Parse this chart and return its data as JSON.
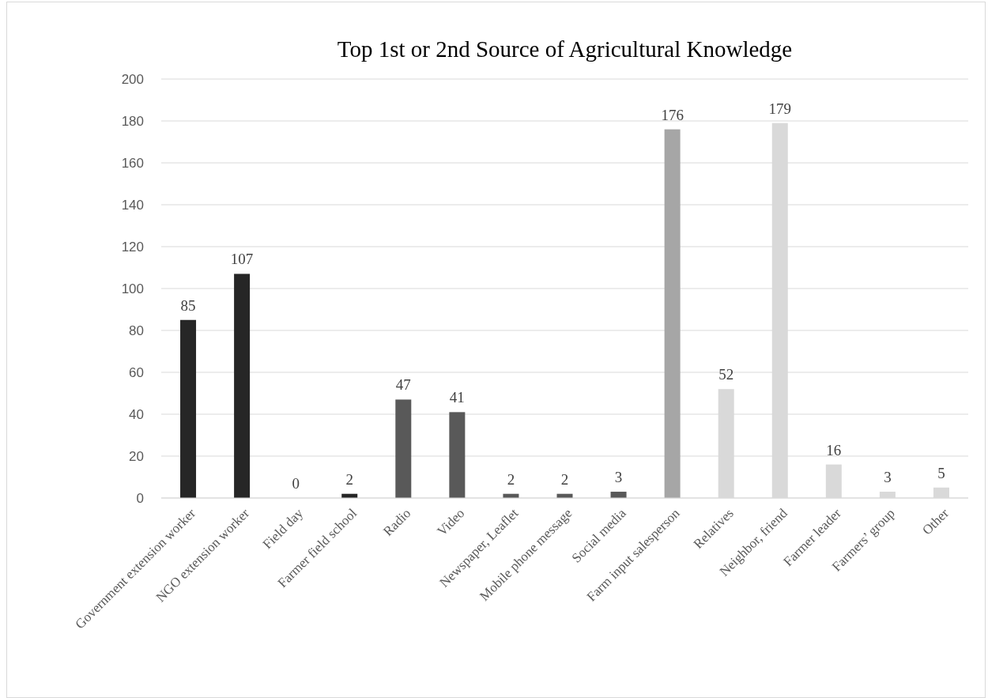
{
  "chart_data": {
    "type": "bar",
    "title": "Top 1st or 2nd Source of Agricultural Knowledge",
    "categories": [
      "Government extension worker",
      "NGO extension worker",
      "Field day",
      "Farmer field school",
      "Radio",
      "Video",
      "Newspaper, Leaflet",
      "Mobile phone message",
      "Social media",
      "Farm input salesperson",
      "Relatives",
      "Neighbor, friend",
      "Farmer leader",
      "Farmers’ group",
      "Other"
    ],
    "values": [
      85,
      107,
      0,
      2,
      47,
      41,
      2,
      2,
      3,
      176,
      52,
      179,
      16,
      3,
      5
    ],
    "colors": [
      "#262626",
      "#262626",
      "#262626",
      "#262626",
      "#595959",
      "#595959",
      "#595959",
      "#595959",
      "#595959",
      "#a6a6a6",
      "#d9d9d9",
      "#d9d9d9",
      "#d9d9d9",
      "#d9d9d9",
      "#d9d9d9"
    ],
    "ylim": [
      0,
      200
    ],
    "yticks": [
      0,
      20,
      40,
      60,
      80,
      100,
      120,
      140,
      160,
      180,
      200
    ],
    "grid": "y",
    "data_labels": true
  }
}
